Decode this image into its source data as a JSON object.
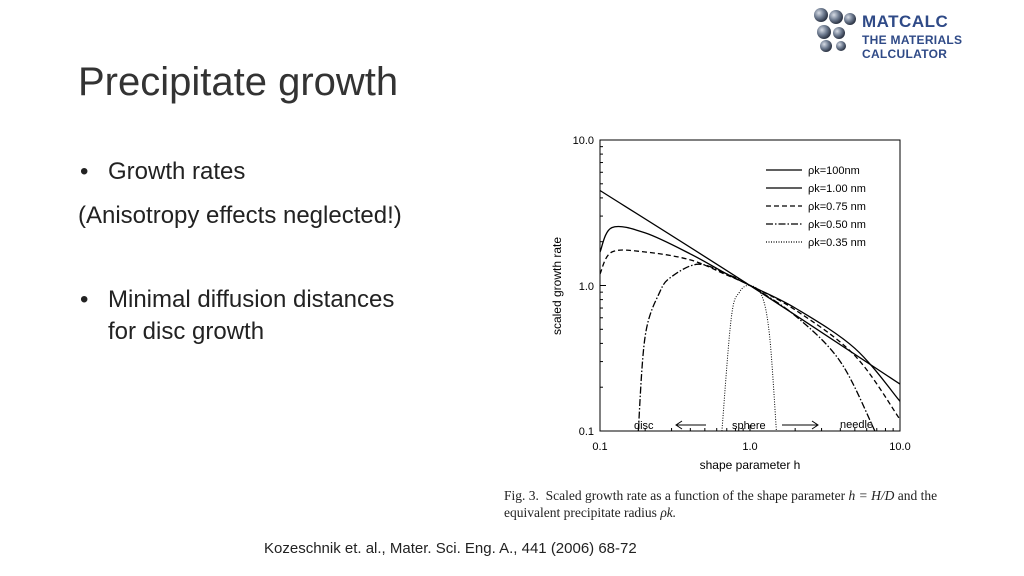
{
  "slide": {
    "title": "Precipitate growth",
    "logo": {
      "line1": "MATCALC",
      "line2": "THE MATERIALS CALCULATOR"
    },
    "bullets": {
      "b1": "Growth rates",
      "note": "(Anisotropy effects neglected!)",
      "b2_line1": "Minimal diffusion distances",
      "b2_line2": "for disc growth"
    },
    "caption": {
      "prefix": "Fig. 3.",
      "text1": "Scaled growth rate as a function of the shape parameter",
      "eq": "h = H/D",
      "text2": "and the",
      "text3": "equivalent precipitate radius",
      "sym": "ρk."
    },
    "citation": "Kozeschnik et. al., Mater. Sci. Eng. A., 441 (2006) 68-72"
  },
  "chart_data": {
    "type": "line",
    "xlabel": "shape parameter h",
    "ylabel": "scaled growth rate",
    "xscale": "log",
    "yscale": "log",
    "xlim": [
      0.1,
      10.0
    ],
    "ylim": [
      0.1,
      10.0
    ],
    "x_ticks": [
      "0.1",
      "1.0",
      "10.0"
    ],
    "y_ticks": [
      "10.0",
      "1.0",
      "0.1"
    ],
    "annotations": {
      "disc": "disc",
      "sphere": "sphere",
      "needle": "needle"
    },
    "legend_position": "top-right",
    "series": [
      {
        "name": "ρk=100nm",
        "style": "solid",
        "x": [
          0.1,
          1.0,
          10.0
        ],
        "y": [
          4.5,
          1.0,
          0.21
        ]
      },
      {
        "name": "ρk=1.00 nm",
        "style": "solid",
        "x": [
          0.1,
          0.12,
          0.2,
          0.4,
          0.7,
          1.0,
          2,
          5,
          10.0
        ],
        "y": [
          1.7,
          2.5,
          2.3,
          1.65,
          1.2,
          1.0,
          0.7,
          0.37,
          0.16
        ]
      },
      {
        "name": "ρk=0.75 nm",
        "style": "dashed",
        "x": [
          0.1,
          0.12,
          0.2,
          0.4,
          0.7,
          1.0,
          2,
          5,
          10.0
        ],
        "y": [
          1.2,
          1.7,
          1.7,
          1.5,
          1.18,
          1.0,
          0.68,
          0.33,
          0.12
        ]
      },
      {
        "name": "ρk=0.50 nm",
        "style": "dashdot",
        "x": [
          0.18,
          0.2,
          0.25,
          0.3,
          0.45,
          0.7,
          1.0,
          2,
          4,
          6.8
        ],
        "y": [
          0.1,
          0.45,
          0.9,
          1.15,
          1.4,
          1.2,
          1.0,
          0.62,
          0.3,
          0.1
        ]
      },
      {
        "name": "ρk=0.35 nm",
        "style": "dotted",
        "x": [
          0.65,
          0.75,
          0.85,
          1.0,
          1.2,
          1.35,
          1.5
        ],
        "y": [
          0.1,
          0.6,
          0.9,
          1.0,
          0.85,
          0.45,
          0.1
        ]
      }
    ]
  }
}
